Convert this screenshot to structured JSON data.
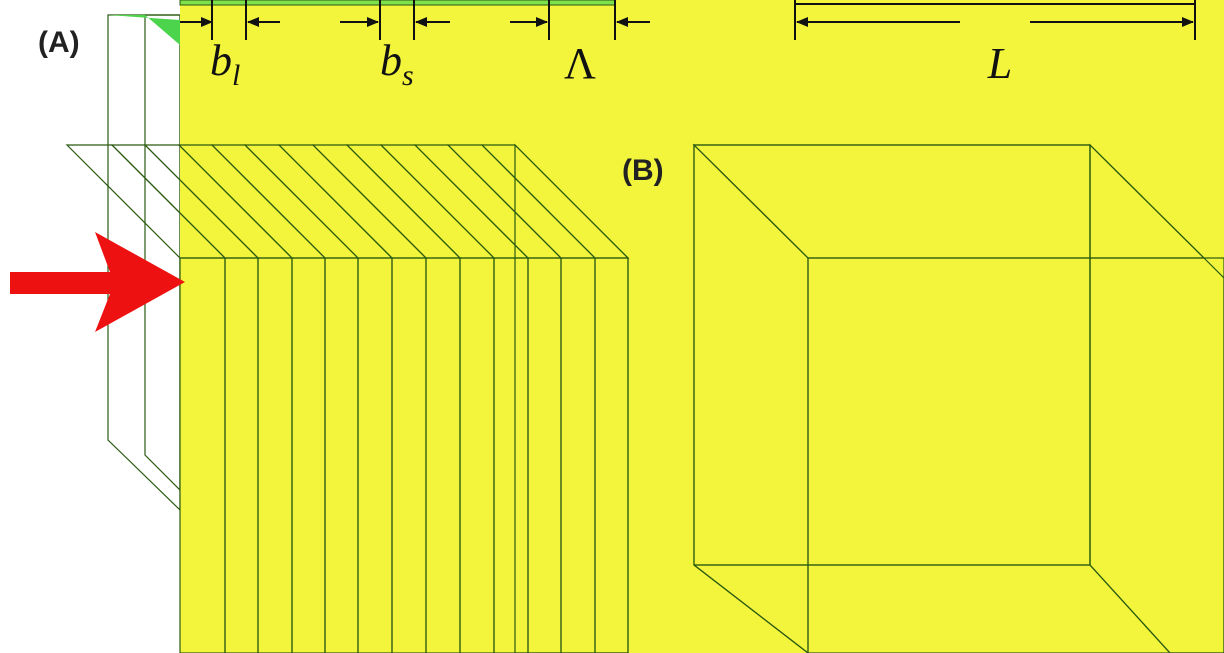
{
  "panels": {
    "a": "(A)",
    "b": "(B)"
  },
  "dimensions": {
    "b_l": {
      "base": "b",
      "sub": "l"
    },
    "b_s": {
      "base": "b",
      "sub": "s"
    },
    "period": "Λ",
    "length": "L"
  }
}
